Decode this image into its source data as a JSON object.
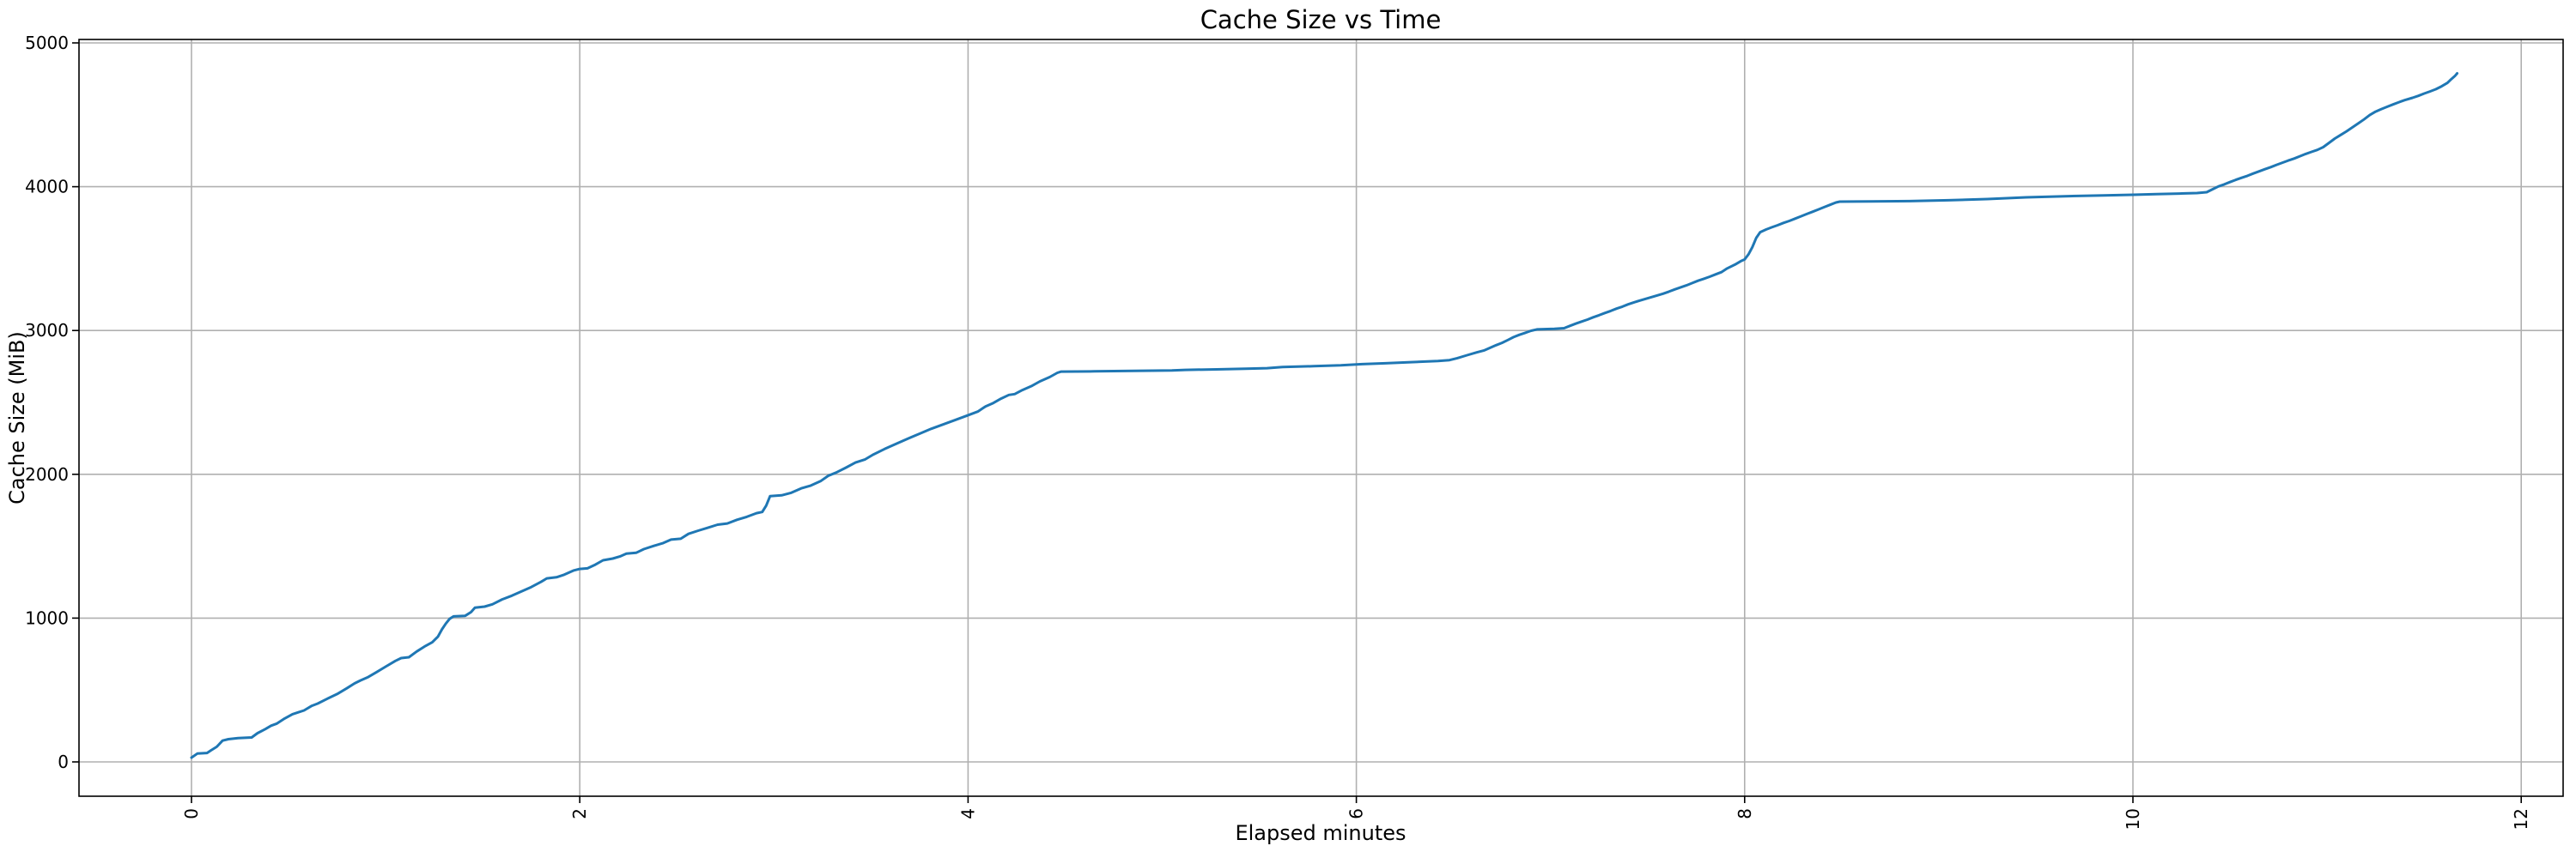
{
  "figure": {
    "background": "#ffffff"
  },
  "chart_data": {
    "type": "line",
    "title": "Cache Size vs Time",
    "xlabel": "Elapsed minutes",
    "ylabel": "Cache Size (MiB)",
    "x_ticks": [
      0,
      2,
      4,
      6,
      8,
      10,
      12
    ],
    "x_tick_labels": [
      "0",
      "2",
      "4",
      "6",
      "8",
      "10",
      "12"
    ],
    "y_ticks": [
      0,
      1000,
      2000,
      3000,
      4000,
      5000
    ],
    "y_tick_labels": [
      "0",
      "1000",
      "2000",
      "3000",
      "4000",
      "5000"
    ],
    "xlim": [
      -0.58,
      12.22
    ],
    "ylim": [
      -240,
      5025
    ],
    "grid": true,
    "legend": "none",
    "x_tick_label_rotation_deg": 90,
    "line_color": "#1f77b4",
    "grid_color": "#b0b0b0",
    "spine_color": "#000000",
    "series": [
      {
        "name": "cache_size_mib",
        "x": [
          0.0,
          0.03,
          0.08,
          0.1,
          0.13,
          0.16,
          0.19,
          0.24,
          0.31,
          0.34,
          0.38,
          0.41,
          0.44,
          0.48,
          0.52,
          0.55,
          0.58,
          0.62,
          0.65,
          0.7,
          0.75,
          0.8,
          0.84,
          0.87,
          0.91,
          0.95,
          1.0,
          1.05,
          1.08,
          1.12,
          1.16,
          1.2,
          1.24,
          1.27,
          1.29,
          1.31,
          1.33,
          1.35,
          1.41,
          1.44,
          1.46,
          1.51,
          1.55,
          1.6,
          1.65,
          1.7,
          1.75,
          1.8,
          1.83,
          1.88,
          1.92,
          1.97,
          2.0,
          2.04,
          2.08,
          2.12,
          2.17,
          2.21,
          2.24,
          2.29,
          2.33,
          2.38,
          2.43,
          2.47,
          2.52,
          2.56,
          2.61,
          2.66,
          2.71,
          2.76,
          2.81,
          2.86,
          2.91,
          2.94,
          2.96,
          2.98,
          3.04,
          3.09,
          3.14,
          3.19,
          3.24,
          3.28,
          3.32,
          3.37,
          3.42,
          3.47,
          3.51,
          3.57,
          3.63,
          3.69,
          3.75,
          3.81,
          3.87,
          3.93,
          3.99,
          4.05,
          4.09,
          4.13,
          4.17,
          4.21,
          4.24,
          4.28,
          4.33,
          4.37,
          4.42,
          4.46,
          4.48,
          4.65,
          4.85,
          5.05,
          5.12,
          5.28,
          5.43,
          5.54,
          5.62,
          5.78,
          5.92,
          6.03,
          6.15,
          6.28,
          6.42,
          6.48,
          6.52,
          6.57,
          6.62,
          6.66,
          6.69,
          6.72,
          6.75,
          6.78,
          6.81,
          6.84,
          6.87,
          6.9,
          6.93,
          7.02,
          7.07,
          7.1,
          7.13,
          7.16,
          7.19,
          7.22,
          7.25,
          7.28,
          7.31,
          7.34,
          7.37,
          7.4,
          7.43,
          7.46,
          7.49,
          7.52,
          7.55,
          7.58,
          7.61,
          7.64,
          7.67,
          7.7,
          7.73,
          7.76,
          7.79,
          7.82,
          7.85,
          7.88,
          7.91,
          7.95,
          7.98,
          8.0,
          8.02,
          8.04,
          8.06,
          8.08,
          8.11,
          8.14,
          8.17,
          8.2,
          8.23,
          8.26,
          8.29,
          8.32,
          8.35,
          8.38,
          8.41,
          8.44,
          8.47,
          8.49,
          8.65,
          8.85,
          9.05,
          9.25,
          9.45,
          9.65,
          9.85,
          10.0,
          10.12,
          10.24,
          10.33,
          10.38,
          10.41,
          10.44,
          10.47,
          10.5,
          10.53,
          10.56,
          10.59,
          10.62,
          10.65,
          10.68,
          10.71,
          10.74,
          10.77,
          10.8,
          10.83,
          10.86,
          10.89,
          10.92,
          10.95,
          10.98,
          11.01,
          11.04,
          11.07,
          11.1,
          11.13,
          11.16,
          11.19,
          11.22,
          11.25,
          11.28,
          11.31,
          11.34,
          11.37,
          11.4,
          11.44,
          11.47,
          11.5,
          11.53,
          11.56,
          11.59,
          11.62,
          11.64,
          11.66,
          11.67
        ],
        "y": [
          30,
          58,
          62,
          80,
          105,
          148,
          158,
          166,
          170,
          200,
          228,
          252,
          267,
          302,
          332,
          345,
          358,
          390,
          406,
          440,
          472,
          512,
          546,
          566,
          590,
          622,
          662,
          702,
          722,
          728,
          768,
          802,
          832,
          872,
          922,
          962,
          995,
          1012,
          1016,
          1042,
          1072,
          1080,
          1096,
          1130,
          1156,
          1186,
          1216,
          1252,
          1276,
          1284,
          1302,
          1332,
          1342,
          1346,
          1372,
          1402,
          1414,
          1430,
          1448,
          1454,
          1480,
          1502,
          1522,
          1546,
          1552,
          1586,
          1608,
          1628,
          1650,
          1658,
          1684,
          1704,
          1730,
          1738,
          1782,
          1848,
          1854,
          1872,
          1902,
          1922,
          1952,
          1990,
          2012,
          2046,
          2082,
          2104,
          2136,
          2176,
          2212,
          2248,
          2282,
          2316,
          2346,
          2376,
          2406,
          2436,
          2472,
          2496,
          2526,
          2552,
          2558,
          2586,
          2616,
          2646,
          2676,
          2706,
          2714,
          2716,
          2719,
          2722,
          2726,
          2730,
          2734,
          2738,
          2746,
          2752,
          2758,
          2766,
          2772,
          2780,
          2788,
          2794,
          2808,
          2828,
          2848,
          2862,
          2880,
          2898,
          2914,
          2934,
          2954,
          2970,
          2984,
          2998,
          3008,
          3012,
          3016,
          3032,
          3048,
          3062,
          3076,
          3092,
          3106,
          3122,
          3136,
          3152,
          3166,
          3182,
          3196,
          3208,
          3220,
          3232,
          3244,
          3256,
          3270,
          3286,
          3300,
          3314,
          3330,
          3346,
          3360,
          3374,
          3390,
          3406,
          3432,
          3458,
          3482,
          3494,
          3530,
          3580,
          3645,
          3684,
          3702,
          3718,
          3732,
          3748,
          3762,
          3778,
          3794,
          3810,
          3826,
          3842,
          3858,
          3874,
          3890,
          3896,
          3898,
          3900,
          3906,
          3914,
          3926,
          3934,
          3940,
          3944,
          3948,
          3952,
          3956,
          3962,
          3982,
          4002,
          4016,
          4032,
          4048,
          4062,
          4076,
          4092,
          4107,
          4122,
          4136,
          4152,
          4167,
          4182,
          4196,
          4212,
          4228,
          4242,
          4256,
          4275,
          4305,
          4335,
          4360,
          4385,
          4412,
          4440,
          4468,
          4498,
          4522,
          4540,
          4556,
          4572,
          4588,
          4602,
          4618,
          4632,
          4648,
          4662,
          4678,
          4698,
          4722,
          4748,
          4772,
          4788
        ]
      }
    ]
  }
}
